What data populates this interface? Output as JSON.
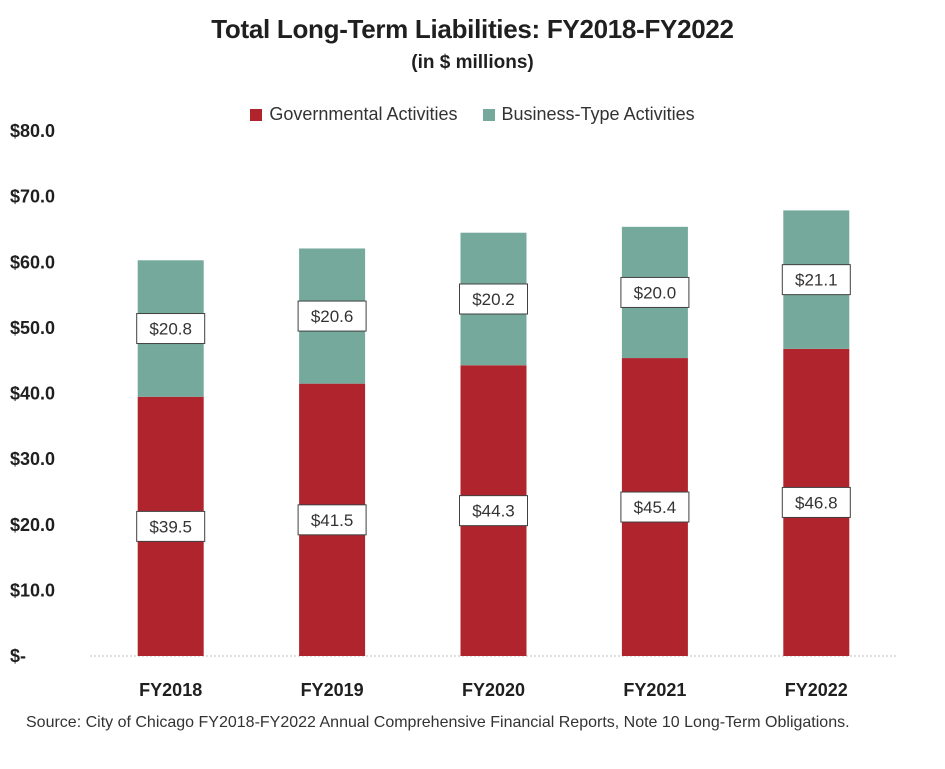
{
  "chart_data": {
    "type": "bar",
    "stacked": true,
    "title": "Total Long-Term Liabilities: FY2018-FY2022",
    "subtitle": "(in $ millions)",
    "categories": [
      "FY2018",
      "FY2019",
      "FY2020",
      "FY2021",
      "FY2022"
    ],
    "series": [
      {
        "name": "Governmental Activities",
        "values": [
          39.5,
          41.5,
          44.3,
          45.4,
          46.8
        ],
        "labels": [
          "$39.5",
          "$41.5",
          "$44.3",
          "$45.4",
          "$46.8"
        ],
        "color": "#b0242e"
      },
      {
        "name": "Business-Type Activities",
        "values": [
          20.8,
          20.6,
          20.2,
          20.0,
          21.1
        ],
        "labels": [
          "$20.8",
          "$20.6",
          "$20.2",
          "$20.0",
          "$21.1"
        ],
        "color": "#75a99c"
      }
    ],
    "ylim": [
      0,
      80
    ],
    "yticks": [
      0,
      10,
      20,
      30,
      40,
      50,
      60,
      70,
      80
    ],
    "ytick_labels": [
      "$-",
      "$10.0",
      "$20.0",
      "$30.0",
      "$40.0",
      "$50.0",
      "$60.0",
      "$70.0",
      "$80.0"
    ],
    "grid": false,
    "legend_position": "top"
  },
  "source": "Source: City of Chicago FY2018-FY2022 Annual Comprehensive Financial Reports, Note 10 Long-Term Obligations."
}
